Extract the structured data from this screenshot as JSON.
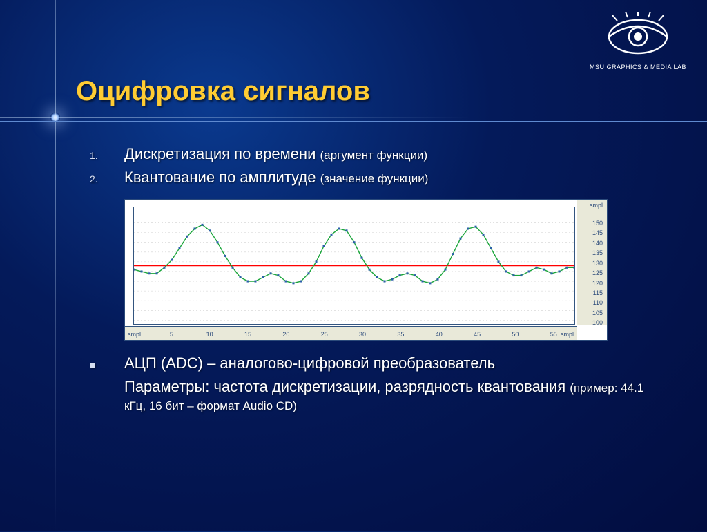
{
  "logo_text": "MSU GRAPHICS & MEDIA LAB",
  "title": "Оцифровка сигналов",
  "items": [
    {
      "num": "1.",
      "main": "Дискретизация по времени ",
      "note": "(аргумент функции)"
    },
    {
      "num": "2.",
      "main": "Квантование по амплитуде ",
      "note": "(значение функции)"
    }
  ],
  "bullet": {
    "marker": "■",
    "line1": "АЦП (ADC) – аналогово-цифровой преобразователь",
    "line2": "Параметры: частота дискретизации, разрядность квантования ",
    "line2_note": "(пример: 44.1 кГц, 16 бит – формат Audio CD)"
  },
  "chart": {
    "type": "line",
    "background_color": "#ffffff",
    "axis_box_color": "#e9e9d9",
    "axis_text_color": "#2b4a7a",
    "tick_fontsize": 9,
    "grid_color": "#d0d0d0",
    "baseline_color": "#ff0000",
    "baseline_y": 128,
    "line_color": "#1aa53a",
    "marker_color": "#2b5fa8",
    "marker_size": 3,
    "line_width": 1.4,
    "x_unit": "smpl",
    "y_unit": "smpl",
    "xlim": [
      0,
      58
    ],
    "ylim": [
      98,
      158
    ],
    "xticks": [
      5,
      10,
      15,
      20,
      25,
      30,
      35,
      40,
      45,
      50,
      55
    ],
    "yticks": [
      100,
      105,
      110,
      115,
      120,
      125,
      130,
      135,
      140,
      145,
      150
    ],
    "data": [
      [
        0,
        126
      ],
      [
        1,
        125
      ],
      [
        2,
        124
      ],
      [
        3,
        124
      ],
      [
        4,
        127
      ],
      [
        5,
        131
      ],
      [
        6,
        137
      ],
      [
        7,
        143
      ],
      [
        8,
        147
      ],
      [
        9,
        149
      ],
      [
        10,
        146
      ],
      [
        11,
        140
      ],
      [
        12,
        133
      ],
      [
        13,
        127
      ],
      [
        14,
        122
      ],
      [
        15,
        120
      ],
      [
        16,
        120
      ],
      [
        17,
        122
      ],
      [
        18,
        124
      ],
      [
        19,
        123
      ],
      [
        20,
        120
      ],
      [
        21,
        119
      ],
      [
        22,
        120
      ],
      [
        23,
        124
      ],
      [
        24,
        130
      ],
      [
        25,
        138
      ],
      [
        26,
        144
      ],
      [
        27,
        147
      ],
      [
        28,
        146
      ],
      [
        29,
        140
      ],
      [
        30,
        132
      ],
      [
        31,
        126
      ],
      [
        32,
        122
      ],
      [
        33,
        120
      ],
      [
        34,
        121
      ],
      [
        35,
        123
      ],
      [
        36,
        124
      ],
      [
        37,
        123
      ],
      [
        38,
        120
      ],
      [
        39,
        119
      ],
      [
        40,
        121
      ],
      [
        41,
        126
      ],
      [
        42,
        134
      ],
      [
        43,
        142
      ],
      [
        44,
        147
      ],
      [
        45,
        148
      ],
      [
        46,
        144
      ],
      [
        47,
        137
      ],
      [
        48,
        130
      ],
      [
        49,
        125
      ],
      [
        50,
        123
      ],
      [
        51,
        123
      ],
      [
        52,
        125
      ],
      [
        53,
        127
      ],
      [
        54,
        126
      ],
      [
        55,
        124
      ],
      [
        56,
        125
      ],
      [
        57,
        127
      ],
      [
        58,
        127
      ]
    ]
  }
}
